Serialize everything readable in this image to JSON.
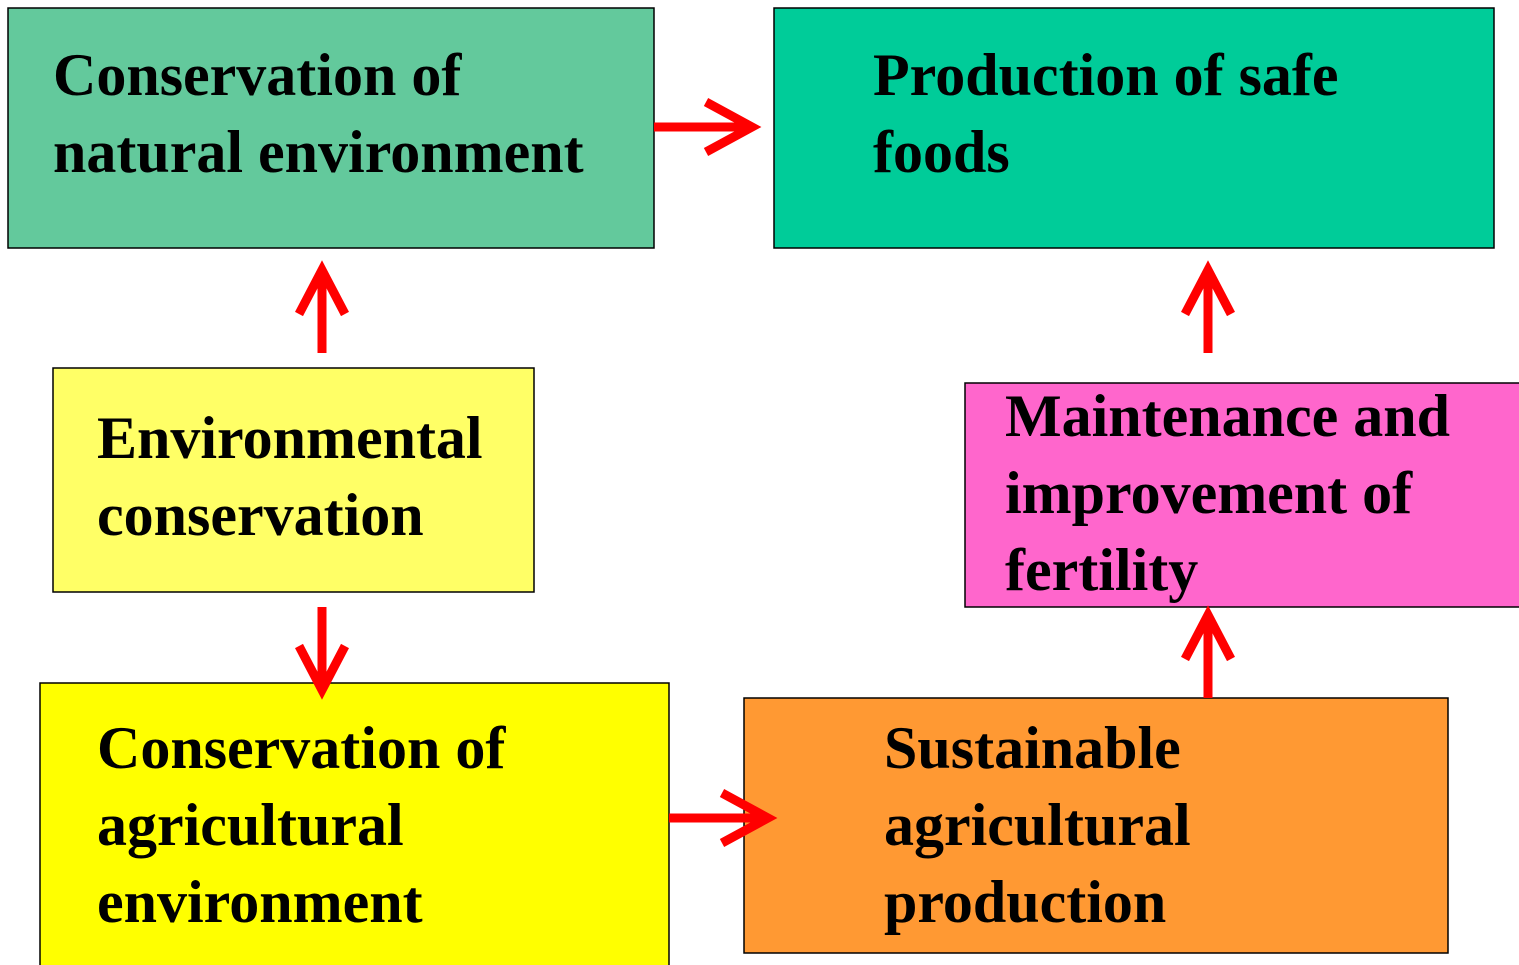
{
  "nodes": [
    {
      "lines": [
        "Conservation of",
        "natural environment"
      ]
    },
    {
      "lines": [
        "Production of safe",
        "foods"
      ]
    },
    {
      "lines": [
        "Environmental",
        "conservation"
      ]
    },
    {
      "lines": [
        "Maintenance and",
        "improvement of",
        "fertility"
      ]
    },
    {
      "lines": [
        "Conservation of",
        "agricultural",
        "environment"
      ]
    },
    {
      "lines": [
        "Sustainable",
        "agricultural",
        "production"
      ]
    }
  ]
}
